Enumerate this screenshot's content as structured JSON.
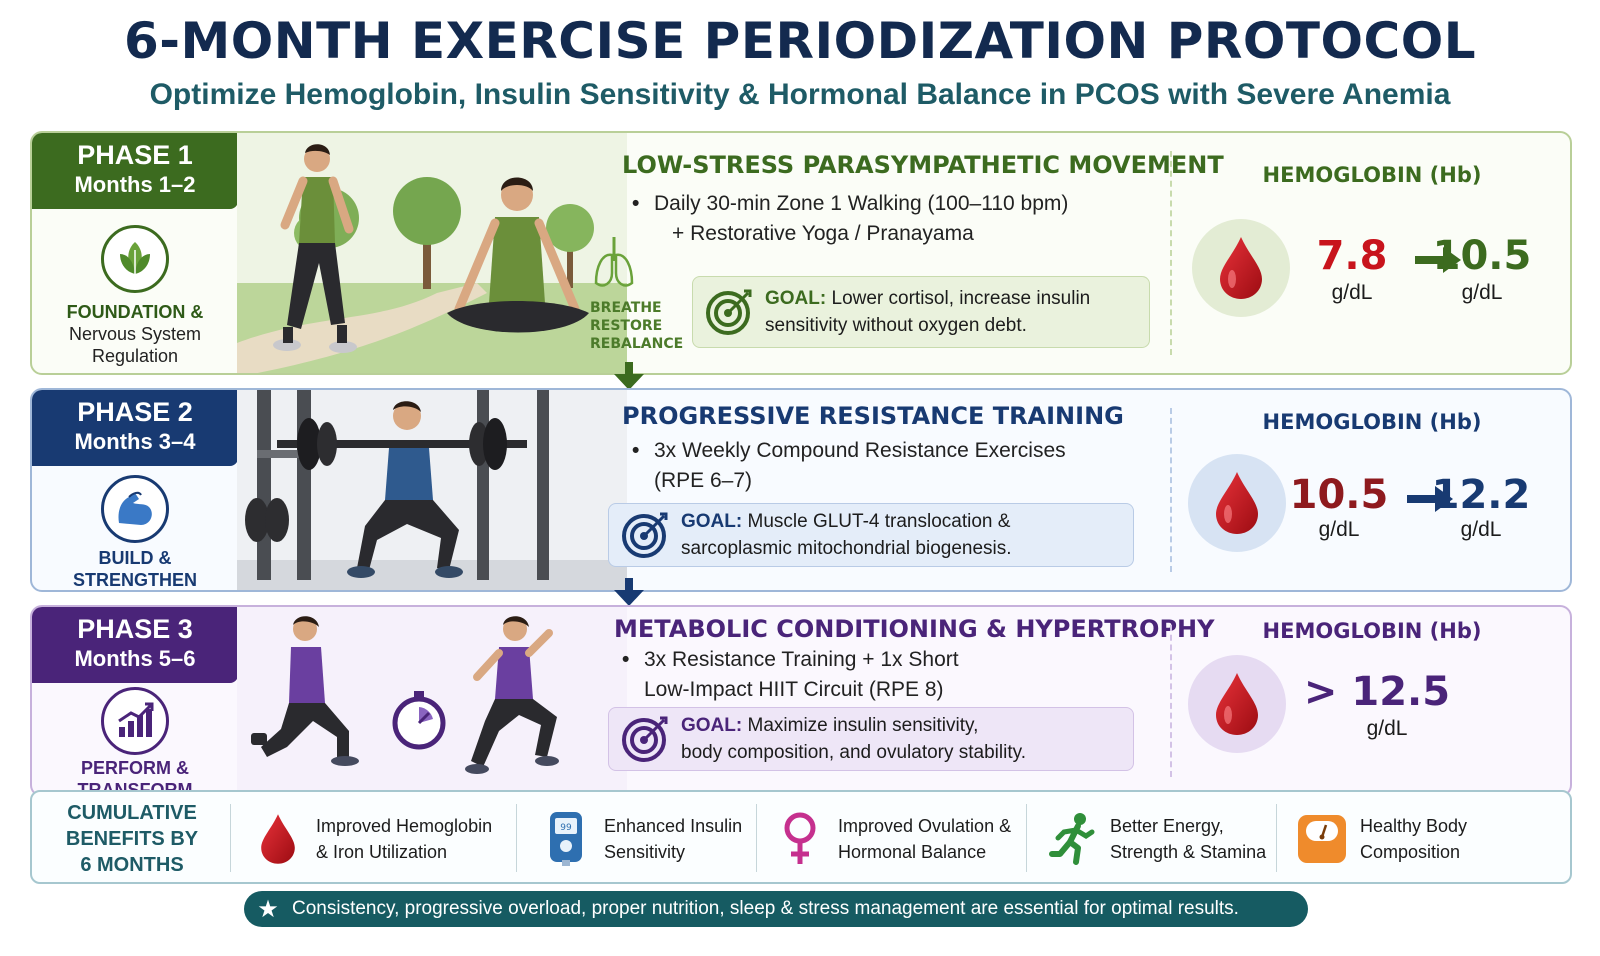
{
  "title": "6-MONTH EXERCISE PERIODIZATION PROTOCOL",
  "subtitle": "Optimize Hemoglobin, Insulin Sensitivity & Hormonal Balance in PCOS with Severe Anemia",
  "phases": [
    {
      "tag": "PHASE 1",
      "months": "Months 1–2",
      "label_line1": "FOUNDATION &",
      "label_line2": "Nervous System Regulation",
      "emblem_icon": "leaf-icon",
      "heading": "LOW-STRESS PARASYMPATHETIC MOVEMENT",
      "bullet_line1": "Daily 30-min Zone 1 Walking (100–110 bpm)",
      "bullet_line2": "+ Restorative Yoga / Pranayama",
      "breathe": [
        "BREATHE",
        "RESTORE",
        "REBALANCE"
      ],
      "goal_label": "GOAL:",
      "goal_text1": "Lower cortisol, increase insulin",
      "goal_text2": "sensitivity without oxygen debt.",
      "hb_title": "HEMOGLOBIN (Hb)",
      "hb_from": "7.8",
      "hb_to": "10.5",
      "hb_unit": "g/dL",
      "accent": "#3c6b1f"
    },
    {
      "tag": "PHASE 2",
      "months": "Months 3–4",
      "label_line1": "BUILD &",
      "label_line2": "STRENGTHEN",
      "emblem_icon": "flexed-arm-icon",
      "heading": "PROGRESSIVE RESISTANCE TRAINING",
      "bullet_line1": "3x Weekly Compound Resistance Exercises",
      "bullet_line2": "(RPE 6–7)",
      "goal_label": "GOAL:",
      "goal_text1": "Muscle GLUT-4 translocation &",
      "goal_text2": "sarcoplasmic mitochondrial biogenesis.",
      "hb_title": "HEMOGLOBIN (Hb)",
      "hb_from": "10.5",
      "hb_to": "12.2",
      "hb_unit": "g/dL",
      "accent": "#183a72"
    },
    {
      "tag": "PHASE 3",
      "months": "Months 5–6",
      "label_line1": "PERFORM &",
      "label_line2": "TRANSFORM",
      "emblem_icon": "growth-chart-icon",
      "heading": "METABOLIC CONDITIONING & HYPERTROPHY",
      "bullet_line1": "3x Resistance Training + 1x Short",
      "bullet_line2": "Low-Impact HIIT Circuit (RPE 8)",
      "goal_label": "GOAL:",
      "goal_text1": "Maximize insulin sensitivity,",
      "goal_text2": "body composition, and ovulatory stability.",
      "hb_title": "HEMOGLOBIN (Hb)",
      "hb_value": "> 12.5",
      "hb_unit": "g/dL",
      "accent": "#4a2479"
    }
  ],
  "benefits": {
    "title_line1": "CUMULATIVE",
    "title_line2": "BENEFITS BY",
    "title_line3": "6 MONTHS",
    "items": [
      {
        "icon": "blood-drop-icon",
        "line1": "Improved Hemoglobin",
        "line2": "& Iron Utilization"
      },
      {
        "icon": "glucose-meter-icon",
        "line1": "Enhanced Insulin",
        "line2": "Sensitivity"
      },
      {
        "icon": "female-symbol-icon",
        "line1": "Improved Ovulation &",
        "line2": "Hormonal Balance"
      },
      {
        "icon": "running-person-icon",
        "line1": "Better Energy,",
        "line2": "Strength & Stamina"
      },
      {
        "icon": "scale-icon",
        "line1": "Healthy Body",
        "line2": "Composition"
      }
    ]
  },
  "footer": "Consistency, progressive overload, proper nutrition, sleep & stress management are essential for optimal results.",
  "colors": {
    "blood": "#c8141c",
    "teal": "#165b62",
    "navy": "#132a4f"
  }
}
